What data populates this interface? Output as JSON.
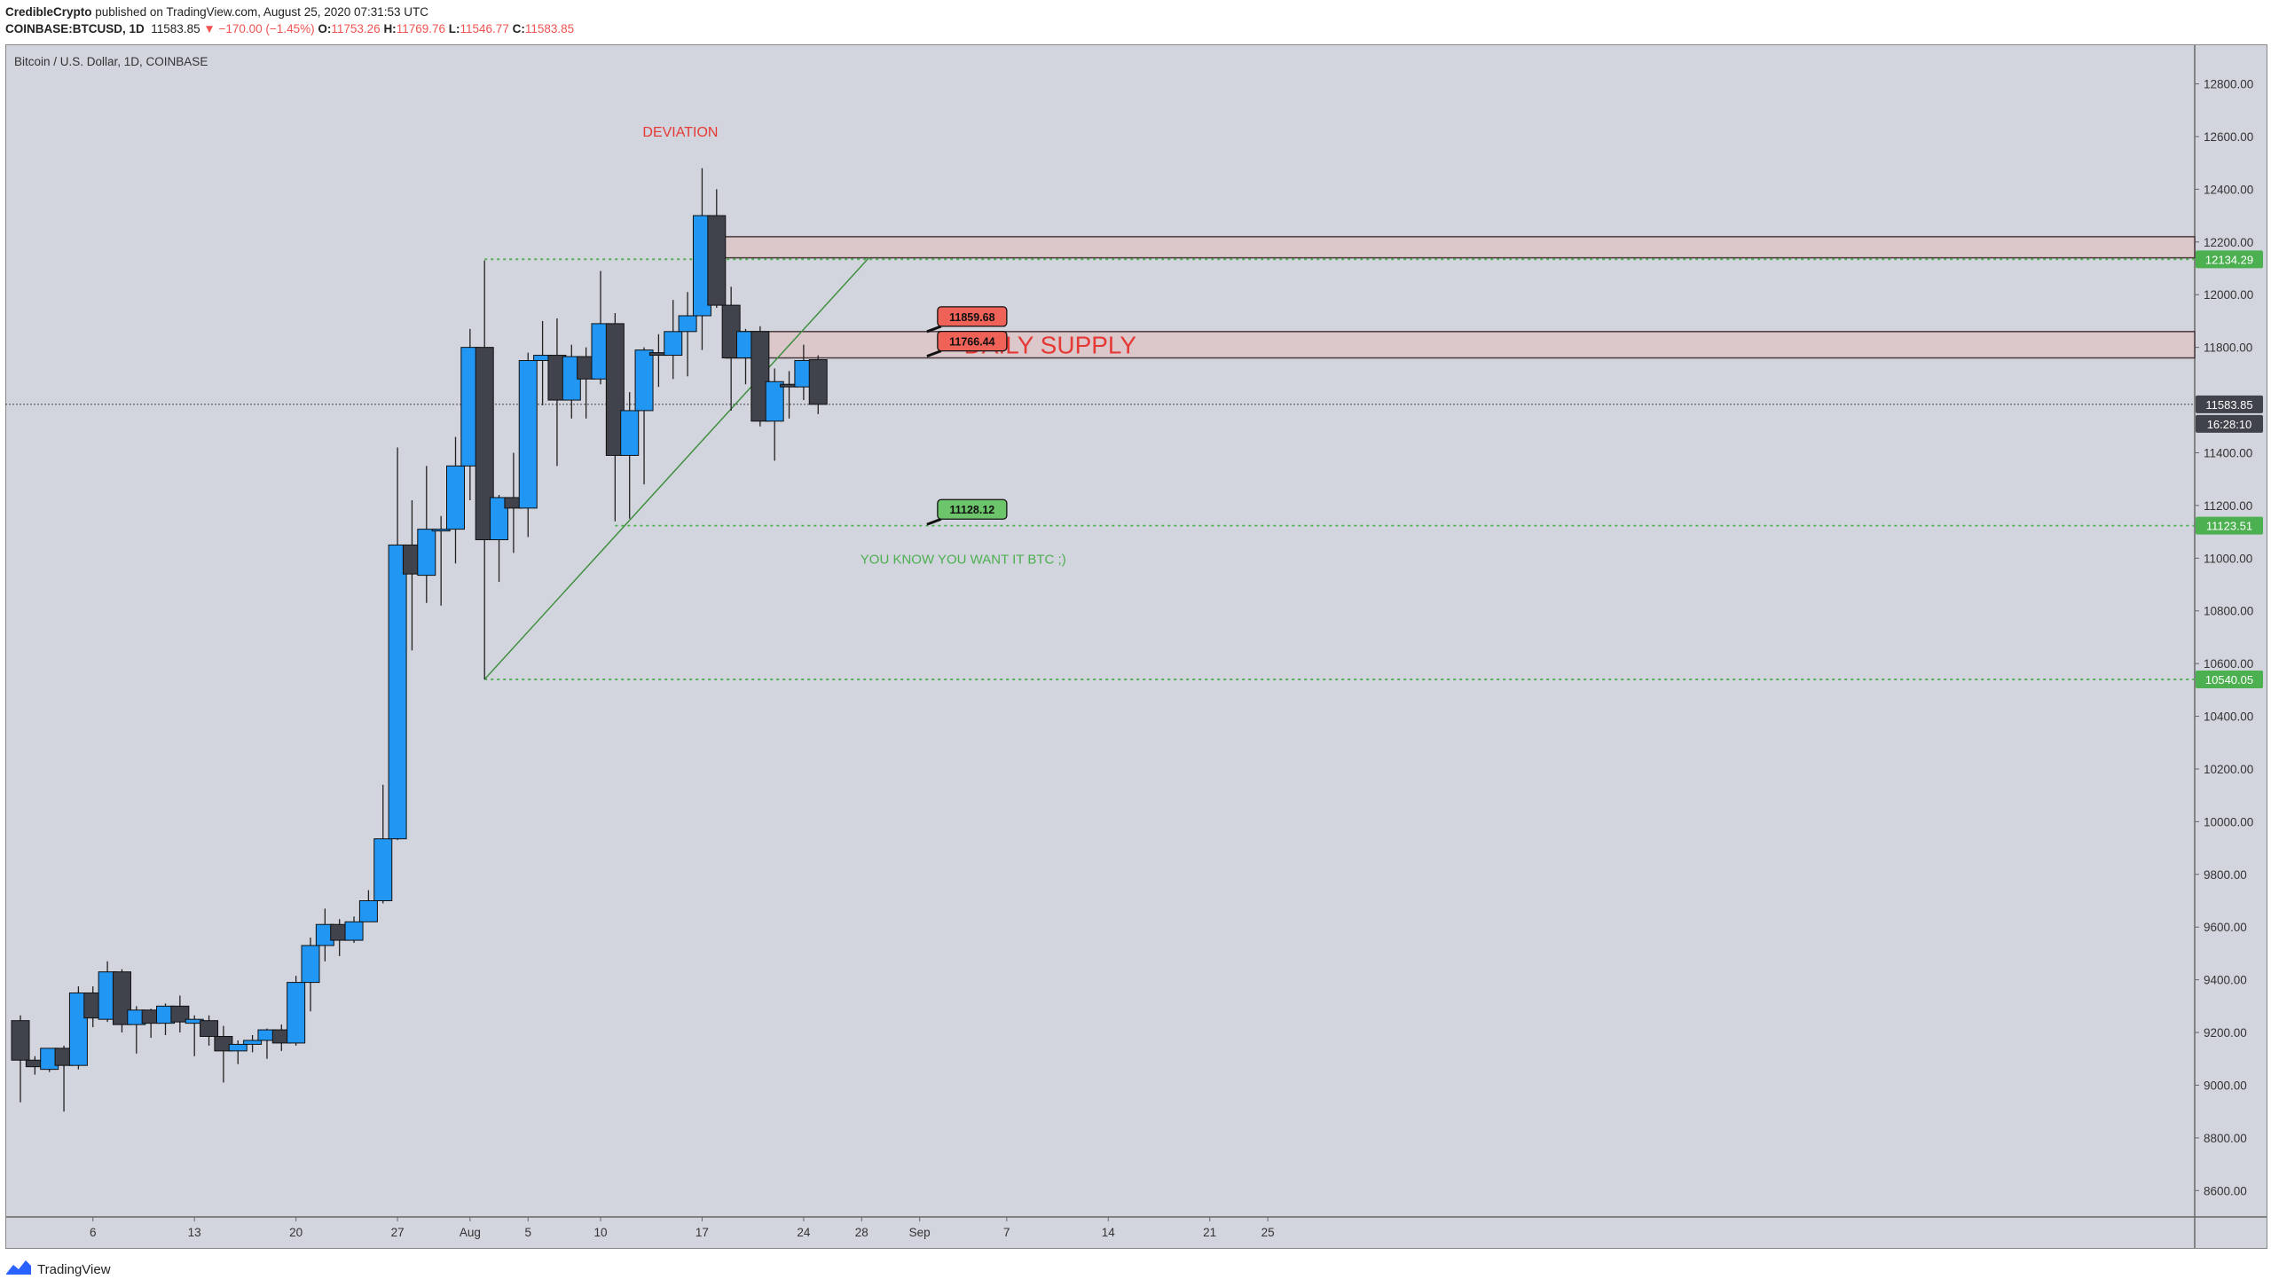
{
  "header": {
    "author": "CredibleCrypto",
    "published": "published on TradingView.com, August 25, 2020 07:31:53 UTC",
    "symbol": "COINBASE:BTCUSD, 1D",
    "last": "11583.85",
    "change": "−170.00 (−1.45%)",
    "open_label": "O:",
    "open": "11753.26",
    "high_label": "H:",
    "high": "11769.76",
    "low_label": "L:",
    "low": "11546.77",
    "close_label": "C:",
    "close": "11583.85"
  },
  "footer": {
    "brand": "TradingView"
  },
  "colors": {
    "background": "#d3d5de",
    "bull": "#2196f3",
    "bear": "#40424c",
    "wick": "#222222",
    "supply_fill": "#ddc4c8",
    "supply_stroke": "#4a3a3c",
    "green": "#4caf50",
    "red": "#e53935"
  },
  "chart_data": {
    "type": "candlestick",
    "title": "Bitcoin / U.S. Dollar, 1D, COINBASE",
    "x_ticks": [
      "6",
      "13",
      "20",
      "27",
      "Aug",
      "5",
      "10",
      "17",
      "24",
      "28",
      "Sep",
      "7",
      "14",
      "21",
      "25"
    ],
    "y_ticks": [
      "8600.00",
      "8800.00",
      "9000.00",
      "9200.00",
      "9400.00",
      "9600.00",
      "9800.00",
      "10000.00",
      "10200.00",
      "10400.00",
      "10600.00",
      "10800.00",
      "11000.00",
      "11200.00",
      "11400.00",
      "11600.00",
      "11800.00",
      "12000.00",
      "12200.00",
      "12400.00",
      "12600.00",
      "12800.00"
    ],
    "ylim": [
      8500,
      12950
    ],
    "dates": [
      "Jul 1",
      "Jul 2",
      "Jul 3",
      "Jul 4",
      "Jul 5",
      "Jul 6",
      "Jul 7",
      "Jul 8",
      "Jul 9",
      "Jul 10",
      "Jul 11",
      "Jul 12",
      "Jul 13",
      "Jul 14",
      "Jul 15",
      "Jul 16",
      "Jul 17",
      "Jul 18",
      "Jul 19",
      "Jul 20",
      "Jul 21",
      "Jul 22",
      "Jul 23",
      "Jul 24",
      "Jul 25",
      "Jul 26",
      "Jul 27",
      "Jul 28",
      "Jul 29",
      "Jul 30",
      "Jul 31",
      "Aug 1",
      "Aug 2",
      "Aug 3",
      "Aug 4",
      "Aug 5",
      "Aug 6",
      "Aug 7",
      "Aug 8",
      "Aug 9",
      "Aug 10",
      "Aug 11",
      "Aug 12",
      "Aug 13",
      "Aug 14",
      "Aug 15",
      "Aug 16",
      "Aug 17",
      "Aug 18",
      "Aug 19",
      "Aug 20",
      "Aug 21",
      "Aug 22",
      "Aug 23",
      "Aug 24",
      "Aug 25"
    ],
    "candles": [
      {
        "o": 9245,
        "h": 9265,
        "l": 8935,
        "c": 9095
      },
      {
        "o": 9095,
        "h": 9110,
        "l": 9040,
        "c": 9070
      },
      {
        "o": 9060,
        "h": 9140,
        "l": 9050,
        "c": 9140
      },
      {
        "o": 9140,
        "h": 9150,
        "l": 8900,
        "c": 9075
      },
      {
        "o": 9075,
        "h": 9375,
        "l": 9060,
        "c": 9350
      },
      {
        "o": 9350,
        "h": 9375,
        "l": 9220,
        "c": 9255
      },
      {
        "o": 9250,
        "h": 9470,
        "l": 9240,
        "c": 9430
      },
      {
        "o": 9430,
        "h": 9440,
        "l": 9200,
        "c": 9230
      },
      {
        "o": 9230,
        "h": 9300,
        "l": 9120,
        "c": 9285
      },
      {
        "o": 9285,
        "h": 9290,
        "l": 9180,
        "c": 9235
      },
      {
        "o": 9235,
        "h": 9310,
        "l": 9190,
        "c": 9300
      },
      {
        "o": 9300,
        "h": 9340,
        "l": 9200,
        "c": 9240
      },
      {
        "o": 9235,
        "h": 9265,
        "l": 9110,
        "c": 9250
      },
      {
        "o": 9245,
        "h": 9265,
        "l": 9150,
        "c": 9185
      },
      {
        "o": 9185,
        "h": 9225,
        "l": 9010,
        "c": 9130
      },
      {
        "o": 9130,
        "h": 9170,
        "l": 9080,
        "c": 9155
      },
      {
        "o": 9155,
        "h": 9190,
        "l": 9125,
        "c": 9170
      },
      {
        "o": 9170,
        "h": 9215,
        "l": 9100,
        "c": 9210
      },
      {
        "o": 9210,
        "h": 9230,
        "l": 9130,
        "c": 9160
      },
      {
        "o": 9160,
        "h": 9415,
        "l": 9150,
        "c": 9390
      },
      {
        "o": 9390,
        "h": 9560,
        "l": 9280,
        "c": 9530
      },
      {
        "o": 9530,
        "h": 9670,
        "l": 9470,
        "c": 9610
      },
      {
        "o": 9610,
        "h": 9630,
        "l": 9490,
        "c": 9550
      },
      {
        "o": 9550,
        "h": 9640,
        "l": 9540,
        "c": 9620
      },
      {
        "o": 9620,
        "h": 9740,
        "l": 9620,
        "c": 9700
      },
      {
        "o": 9700,
        "h": 10140,
        "l": 9690,
        "c": 9935
      },
      {
        "o": 9935,
        "h": 11420,
        "l": 9930,
        "c": 11050
      },
      {
        "o": 11050,
        "h": 11220,
        "l": 10650,
        "c": 10940
      },
      {
        "o": 10935,
        "h": 11350,
        "l": 10830,
        "c": 11110
      },
      {
        "o": 11110,
        "h": 11160,
        "l": 10820,
        "c": 11110
      },
      {
        "o": 11110,
        "h": 11460,
        "l": 10980,
        "c": 11350
      },
      {
        "o": 11350,
        "h": 11870,
        "l": 11220,
        "c": 11800
      },
      {
        "o": 11800,
        "h": 12130,
        "l": 10540,
        "c": 11070
      },
      {
        "o": 11070,
        "h": 11240,
        "l": 10910,
        "c": 11230
      },
      {
        "o": 11230,
        "h": 11400,
        "l": 11020,
        "c": 11190
      },
      {
        "o": 11190,
        "h": 11780,
        "l": 11080,
        "c": 11750
      },
      {
        "o": 11750,
        "h": 11900,
        "l": 11580,
        "c": 11770
      },
      {
        "o": 11770,
        "h": 11910,
        "l": 11350,
        "c": 11600
      },
      {
        "o": 11600,
        "h": 11810,
        "l": 11530,
        "c": 11765
      },
      {
        "o": 11765,
        "h": 11800,
        "l": 11530,
        "c": 11680
      },
      {
        "o": 11680,
        "h": 12090,
        "l": 11660,
        "c": 11890
      },
      {
        "o": 11890,
        "h": 11930,
        "l": 11140,
        "c": 11390
      },
      {
        "o": 11390,
        "h": 11630,
        "l": 11150,
        "c": 11560
      },
      {
        "o": 11560,
        "h": 11800,
        "l": 11280,
        "c": 11790
      },
      {
        "o": 11780,
        "h": 11850,
        "l": 11650,
        "c": 11770
      },
      {
        "o": 11770,
        "h": 11980,
        "l": 11680,
        "c": 11860
      },
      {
        "o": 11860,
        "h": 12010,
        "l": 11690,
        "c": 11920
      },
      {
        "o": 11920,
        "h": 12480,
        "l": 11790,
        "c": 12300
      },
      {
        "o": 12300,
        "h": 12400,
        "l": 11950,
        "c": 11960
      },
      {
        "o": 11960,
        "h": 12030,
        "l": 11560,
        "c": 11760
      },
      {
        "o": 11760,
        "h": 11870,
        "l": 11660,
        "c": 11860
      },
      {
        "o": 11860,
        "h": 11880,
        "l": 11500,
        "c": 11520
      },
      {
        "o": 11520,
        "h": 11720,
        "l": 11370,
        "c": 11670
      },
      {
        "o": 11660,
        "h": 11710,
        "l": 11530,
        "c": 11650
      },
      {
        "o": 11650,
        "h": 11810,
        "l": 11600,
        "c": 11750
      },
      {
        "o": 11753.26,
        "h": 11769.76,
        "l": 11546.77,
        "c": 11583.85
      }
    ],
    "annotations": {
      "deviation": "DEVIATION",
      "daily_supply": "DAILY SUPPLY",
      "supply_zones": [
        {
          "from_index": 47,
          "top": 12220,
          "bottom": 12140
        },
        {
          "from_index": 49,
          "top": 11860,
          "bottom": 11760
        }
      ],
      "levels": [
        {
          "value": 12134.29,
          "label": "12134.29",
          "from_index": 32
        },
        {
          "value": 11123.51,
          "label": "11123.51",
          "from_index": 41
        },
        {
          "value": 10540.05,
          "label": "10540.05",
          "from_index": 32
        }
      ],
      "trendline": {
        "from_index": 32,
        "from_value": 10540,
        "to_index": 58.5,
        "to_value": 12140
      },
      "price_callouts": [
        {
          "label": "11859.68",
          "value": 11859.68,
          "anchor_index": 62.5,
          "color": "red"
        },
        {
          "label": "11766.44",
          "value": 11766.44,
          "anchor_index": 62.5,
          "color": "red"
        },
        {
          "label": "11128.12",
          "value": 11128.12,
          "anchor_index": 62.5,
          "color": "green"
        }
      ],
      "note": "YOU KNOW YOU WANT IT BTC ;)"
    },
    "current_price_label": "11583.85",
    "countdown_label": "16:28:10"
  }
}
